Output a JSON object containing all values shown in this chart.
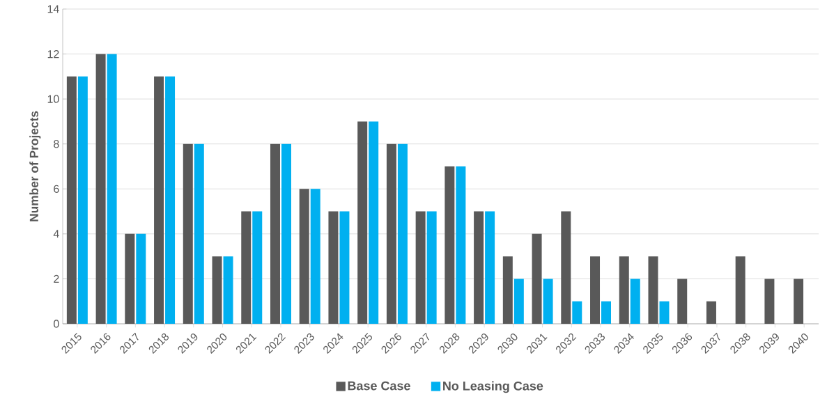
{
  "chart_data": {
    "type": "bar",
    "ylabel": "Number of Projects",
    "categories": [
      "2015",
      "2016",
      "2017",
      "2018",
      "2019",
      "2020",
      "2021",
      "2022",
      "2023",
      "2024",
      "2025",
      "2026",
      "2027",
      "2028",
      "2029",
      "2030",
      "2031",
      "2032",
      "2033",
      "2034",
      "2035",
      "2036",
      "2037",
      "2038",
      "2039",
      "2040"
    ],
    "series": [
      {
        "name": "Base Case",
        "color": "#595959",
        "values": [
          11,
          12,
          4,
          11,
          8,
          3,
          5,
          8,
          6,
          5,
          9,
          8,
          5,
          7,
          5,
          3,
          4,
          5,
          3,
          3,
          3,
          2,
          1,
          3,
          2,
          2
        ]
      },
      {
        "name": "No Leasing Case",
        "color": "#00b0f0",
        "values": [
          11,
          12,
          4,
          11,
          8,
          3,
          5,
          8,
          6,
          5,
          9,
          8,
          5,
          7,
          5,
          2,
          2,
          1,
          1,
          2,
          1,
          0,
          0,
          0,
          0,
          0
        ]
      }
    ],
    "ylim": [
      0,
      14
    ],
    "yticks": [
      0,
      2,
      4,
      6,
      8,
      10,
      12,
      14
    ],
    "grid": "y",
    "legend": "bottom"
  }
}
